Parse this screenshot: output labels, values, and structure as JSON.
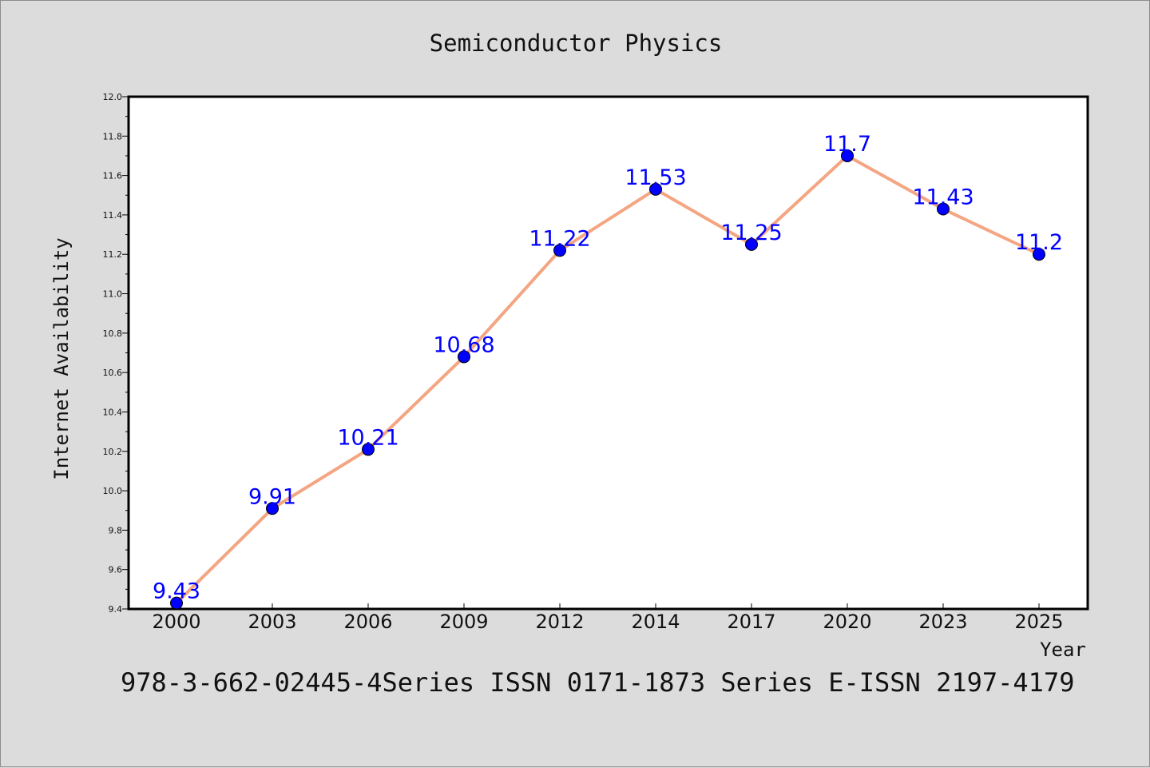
{
  "chart_data": {
    "type": "line",
    "title": "Semiconductor Physics",
    "xlabel": "Year",
    "ylabel": "Internet Availability",
    "categories": [
      "2000",
      "2003",
      "2006",
      "2009",
      "2012",
      "2014",
      "2017",
      "2020",
      "2023",
      "2025"
    ],
    "series": [
      {
        "values": [
          9.43,
          9.91,
          10.21,
          10.68,
          11.22,
          11.53,
          11.25,
          11.7,
          11.43,
          11.2
        ],
        "labels": [
          "9.43",
          "9.91",
          "10.21",
          "10.68",
          "11.22",
          "11.53",
          "11.25",
          "11.7",
          "11.43",
          "11.2"
        ],
        "line_color": "#f4a582",
        "marker_color": "#0000ff"
      }
    ],
    "ylim": [
      9.4,
      12.0
    ],
    "yticks": [
      "9.4",
      "9.6",
      "9.8",
      "10.0",
      "10.2",
      "10.4",
      "10.6",
      "10.8",
      "11.0",
      "11.2",
      "11.4",
      "11.6",
      "11.8",
      "12.0"
    ],
    "grid": false,
    "legend": "none"
  },
  "footer": {
    "text": "978-3-662-02445-4Series ISSN 0171-1873 Series E-ISSN 2197-4179"
  },
  "colors": {
    "background": "#dcdcdc",
    "plot_area": "#ffffff",
    "line": "#f4a582",
    "marker": "#0000ff",
    "data_label": "#0000ff"
  }
}
